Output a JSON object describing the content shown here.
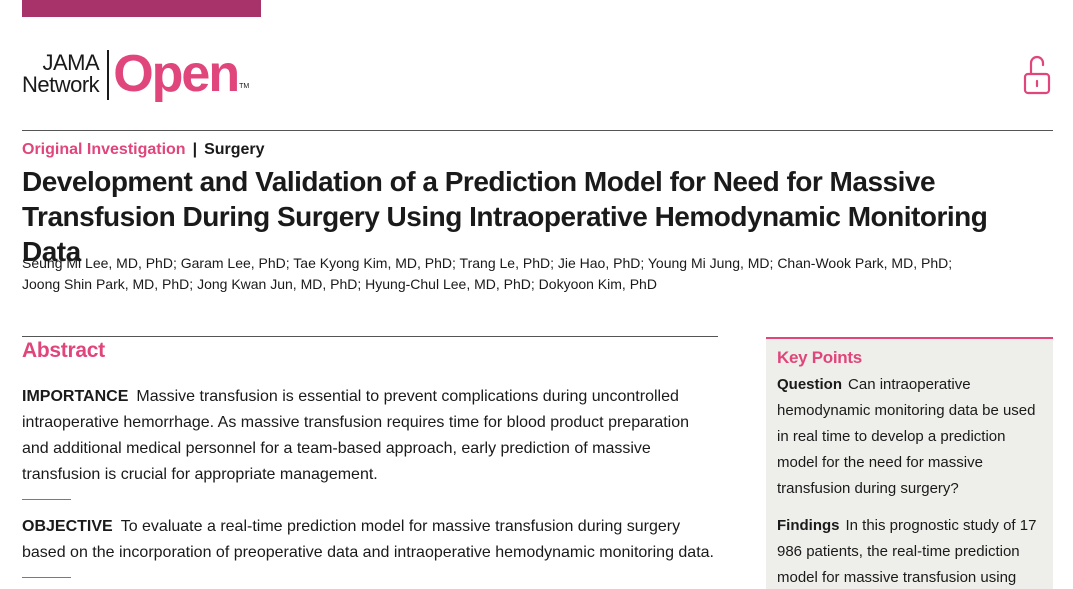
{
  "brand": {
    "line1": "JAMA",
    "line2": "Network",
    "name": "Open",
    "tm": "TM",
    "accent_color": "#e0457b",
    "bar_color": "#a8326a"
  },
  "kicker": {
    "type": "Original Investigation",
    "separator": "|",
    "topic": "Surgery"
  },
  "title": "Development and Validation of a Prediction Model for Need for Massive Transfusion During Surgery Using Intraoperative Hemodynamic Monitoring Data",
  "authors": {
    "line1": "Seung Mi Lee, MD, PhD; Garam Lee, PhD; Tae Kyong Kim, MD, PhD; Trang Le, PhD; Jie Hao, PhD; Young Mi Jung, MD; Chan-Wook Park, MD, PhD;",
    "line2": "Joong Shin Park, MD, PhD; Jong Kwan Jun, MD, PhD; Hyung-Chul Lee, MD, PhD; Dokyoon Kim, PhD"
  },
  "abstract": {
    "heading": "Abstract",
    "importance": {
      "label": "IMPORTANCE",
      "text": "Massive transfusion is essential to prevent complications during uncontrolled intraoperative hemorrhage. As massive transfusion requires time for blood product preparation and additional medical personnel for a team-based approach, early prediction of massive transfusion is crucial for appropriate management."
    },
    "objective": {
      "label": "OBJECTIVE",
      "text": "To evaluate a real-time prediction model for massive transfusion during surgery based on the incorporation of preoperative data and intraoperative hemodynamic monitoring data."
    }
  },
  "key_points": {
    "heading": "Key Points",
    "question": {
      "label": "Question",
      "text": "Can intraoperative hemodynamic monitoring data be used in real time to develop a prediction model for the need for massive transfusion during surgery?"
    },
    "findings": {
      "label": "Findings",
      "text": "In this prognostic study of 17 986 patients, the real-time prediction model for massive transfusion using"
    }
  },
  "icons": {
    "open_access": "unlocked-padlock-icon"
  }
}
